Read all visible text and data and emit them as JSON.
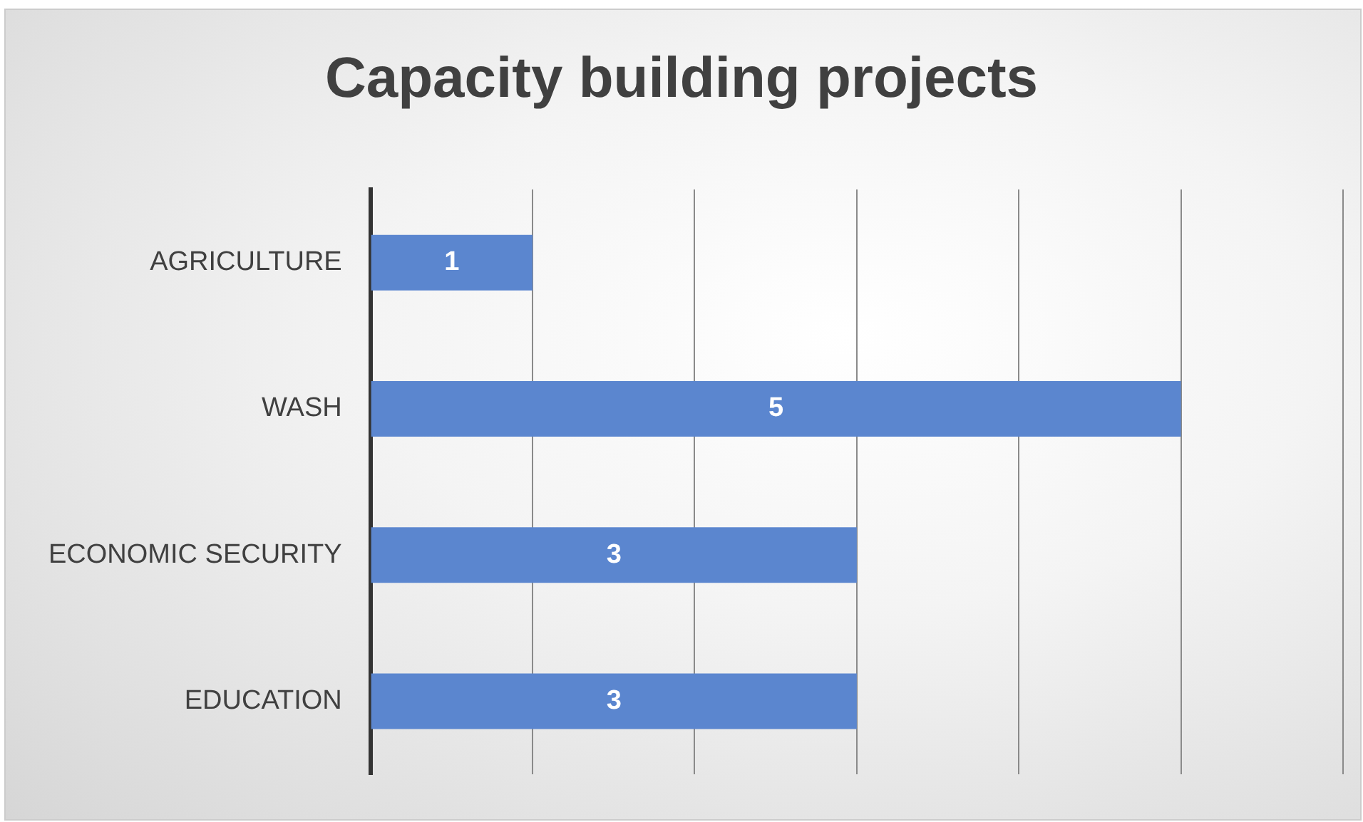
{
  "chart_data": {
    "type": "bar",
    "orientation": "horizontal",
    "title": "Capacity building projects",
    "categories": [
      "AGRICULTURE",
      "WASH",
      "ECONOMIC SECURITY",
      "EDUCATION"
    ],
    "values": [
      1,
      5,
      3,
      3
    ],
    "color": "#5b86cf",
    "xlim": [
      0,
      6
    ],
    "xticks": [
      {
        "value": 0,
        "label": null
      },
      {
        "value": 1,
        "label": null
      },
      {
        "value": 2,
        "label": null
      },
      {
        "value": 3,
        "label": null
      },
      {
        "value": 4,
        "label": null
      },
      {
        "value": 5,
        "label": null
      },
      {
        "value": 6,
        "label": null
      }
    ],
    "tick_labels": "y",
    "grid": "x",
    "legend": false,
    "data_labels": true
  }
}
